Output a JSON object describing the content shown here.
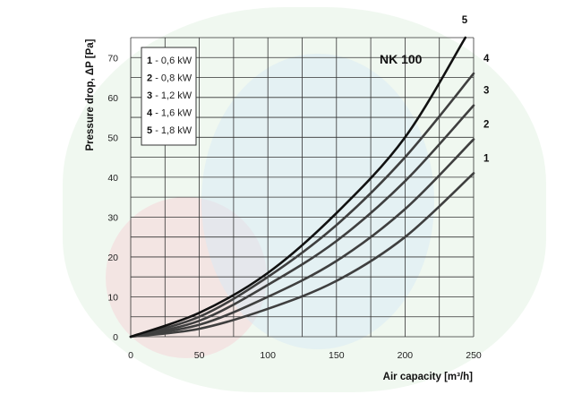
{
  "chart_data": {
    "type": "line",
    "model_label": "NK 100",
    "xlabel": "Air capacity [m³/h]",
    "ylabel": "Pressure drop, ΔP [Pa]",
    "xlim": [
      0,
      250
    ],
    "ylim": [
      0,
      75
    ],
    "xticks": [
      0,
      50,
      100,
      150,
      200,
      250
    ],
    "yticks": [
      0,
      10,
      20,
      30,
      40,
      50,
      60,
      70
    ],
    "grid": true,
    "legend_position": "top-left",
    "legend": [
      {
        "num": "1",
        "text": "- 0,6 kW"
      },
      {
        "num": "2",
        "text": "- 0,8 kW"
      },
      {
        "num": "3",
        "text": "- 1,2 kW"
      },
      {
        "num": "4",
        "text": "- 1,6 kW"
      },
      {
        "num": "5",
        "text": "- 1,8 kW"
      }
    ],
    "series": [
      {
        "label": "1",
        "x": [
          0,
          50,
          100,
          150,
          200,
          250
        ],
        "y": [
          0,
          2,
          7,
          14,
          25,
          41
        ]
      },
      {
        "label": "2",
        "x": [
          0,
          50,
          100,
          150,
          200,
          250
        ],
        "y": [
          0,
          3,
          10,
          19,
          32,
          49.5
        ]
      },
      {
        "label": "3",
        "x": [
          0,
          50,
          100,
          150,
          200,
          250
        ],
        "y": [
          0,
          4,
          13,
          24,
          39,
          58
        ]
      },
      {
        "label": "4",
        "x": [
          0,
          50,
          100,
          150,
          200,
          250
        ],
        "y": [
          0,
          5,
          15,
          28,
          45,
          66
        ]
      },
      {
        "label": "5",
        "x": [
          0,
          50,
          100,
          150,
          200,
          244
        ],
        "y": [
          0,
          6,
          16,
          31,
          50,
          75
        ]
      }
    ],
    "colors": {
      "grid": "#333333",
      "curves": "#3f3f3f",
      "curve_5": "#111111"
    }
  }
}
